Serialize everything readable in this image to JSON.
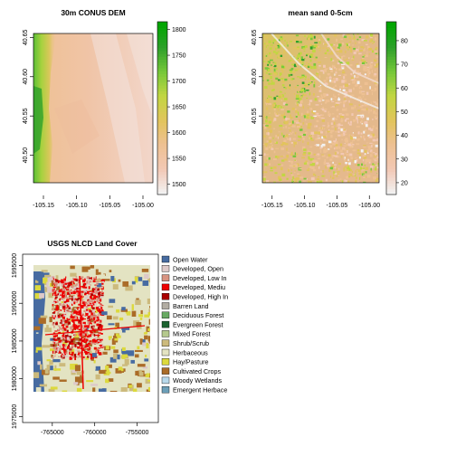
{
  "chart_data": [
    {
      "type": "heatmap",
      "title": "30m CONUS DEM",
      "xlabel": "",
      "ylabel": "",
      "x_ticks": [
        "-105.15",
        "-105.10",
        "-105.05",
        "-105.00"
      ],
      "y_ticks": [
        "40.50",
        "40.55",
        "40.60",
        "40.65"
      ],
      "xlim": [
        -105.165,
        -104.985
      ],
      "ylim": [
        40.465,
        40.655
      ],
      "colorbar": {
        "ticks": [
          "1500",
          "1550",
          "1600",
          "1650",
          "1700",
          "1750",
          "1800"
        ],
        "tick_values": [
          1500,
          1550,
          1600,
          1650,
          1700,
          1750,
          1800
        ],
        "range": [
          1480,
          1815
        ],
        "colors": [
          "#f2f2f2",
          "#f2c8b4",
          "#eec193",
          "#e2c45c",
          "#c2d642",
          "#77c83a",
          "#2ea02b",
          "#00a600"
        ]
      }
    },
    {
      "type": "heatmap",
      "title": "mean sand 0-5cm",
      "xlabel": "",
      "ylabel": "",
      "x_ticks": [
        "-105.15",
        "-105.10",
        "-105.05",
        "-105.00"
      ],
      "y_ticks": [
        "40.50",
        "40.55",
        "40.60",
        "40.65"
      ],
      "xlim": [
        -105.165,
        -104.985
      ],
      "ylim": [
        40.465,
        40.655
      ],
      "colorbar": {
        "ticks": [
          "20",
          "30",
          "40",
          "50",
          "60",
          "70",
          "80"
        ],
        "tick_values": [
          20,
          30,
          40,
          50,
          60,
          70,
          80
        ],
        "range": [
          15,
          88
        ],
        "colors": [
          "#f2f2f2",
          "#f2c8b4",
          "#eec193",
          "#e2c45c",
          "#c2d642",
          "#77c83a",
          "#2ea02b",
          "#00a600"
        ]
      }
    },
    {
      "type": "heatmap",
      "title": "USGS NLCD Land Cover",
      "xlabel": "",
      "ylabel": "",
      "x_ticks": [
        "-765000",
        "-760000",
        "-755000"
      ],
      "y_ticks": [
        "1975000",
        "1980000",
        "1985000",
        "1990000",
        "1995000"
      ],
      "xlim": [
        -768500,
        -752500
      ],
      "ylim": [
        1974200,
        1996500
      ],
      "legend": [
        {
          "label": "Open Water",
          "color": "#476ba1"
        },
        {
          "label": "Developed, Open",
          "color": "#ddc9c9"
        },
        {
          "label": "Developed, Low In",
          "color": "#d89382"
        },
        {
          "label": "Developed, Mediu",
          "color": "#ed0000"
        },
        {
          "label": "Developed, High In",
          "color": "#aa0000"
        },
        {
          "label": "Barren Land",
          "color": "#b2ada3"
        },
        {
          "label": "Deciduous Forest",
          "color": "#68aa63"
        },
        {
          "label": "Evergreen Forest",
          "color": "#1c6330"
        },
        {
          "label": "Mixed Forest",
          "color": "#b5c98e"
        },
        {
          "label": "Shrub/Scrub",
          "color": "#ccba7c"
        },
        {
          "label": "Herbaceous",
          "color": "#e3e3c2"
        },
        {
          "label": "Hay/Pasture",
          "color": "#dcd93d"
        },
        {
          "label": "Cultivated Crops",
          "color": "#ab6c28"
        },
        {
          "label": "Woody Wetlands",
          "color": "#b8d9eb"
        },
        {
          "label": "Emergent Herbace",
          "color": "#6c9fb8"
        }
      ]
    }
  ]
}
